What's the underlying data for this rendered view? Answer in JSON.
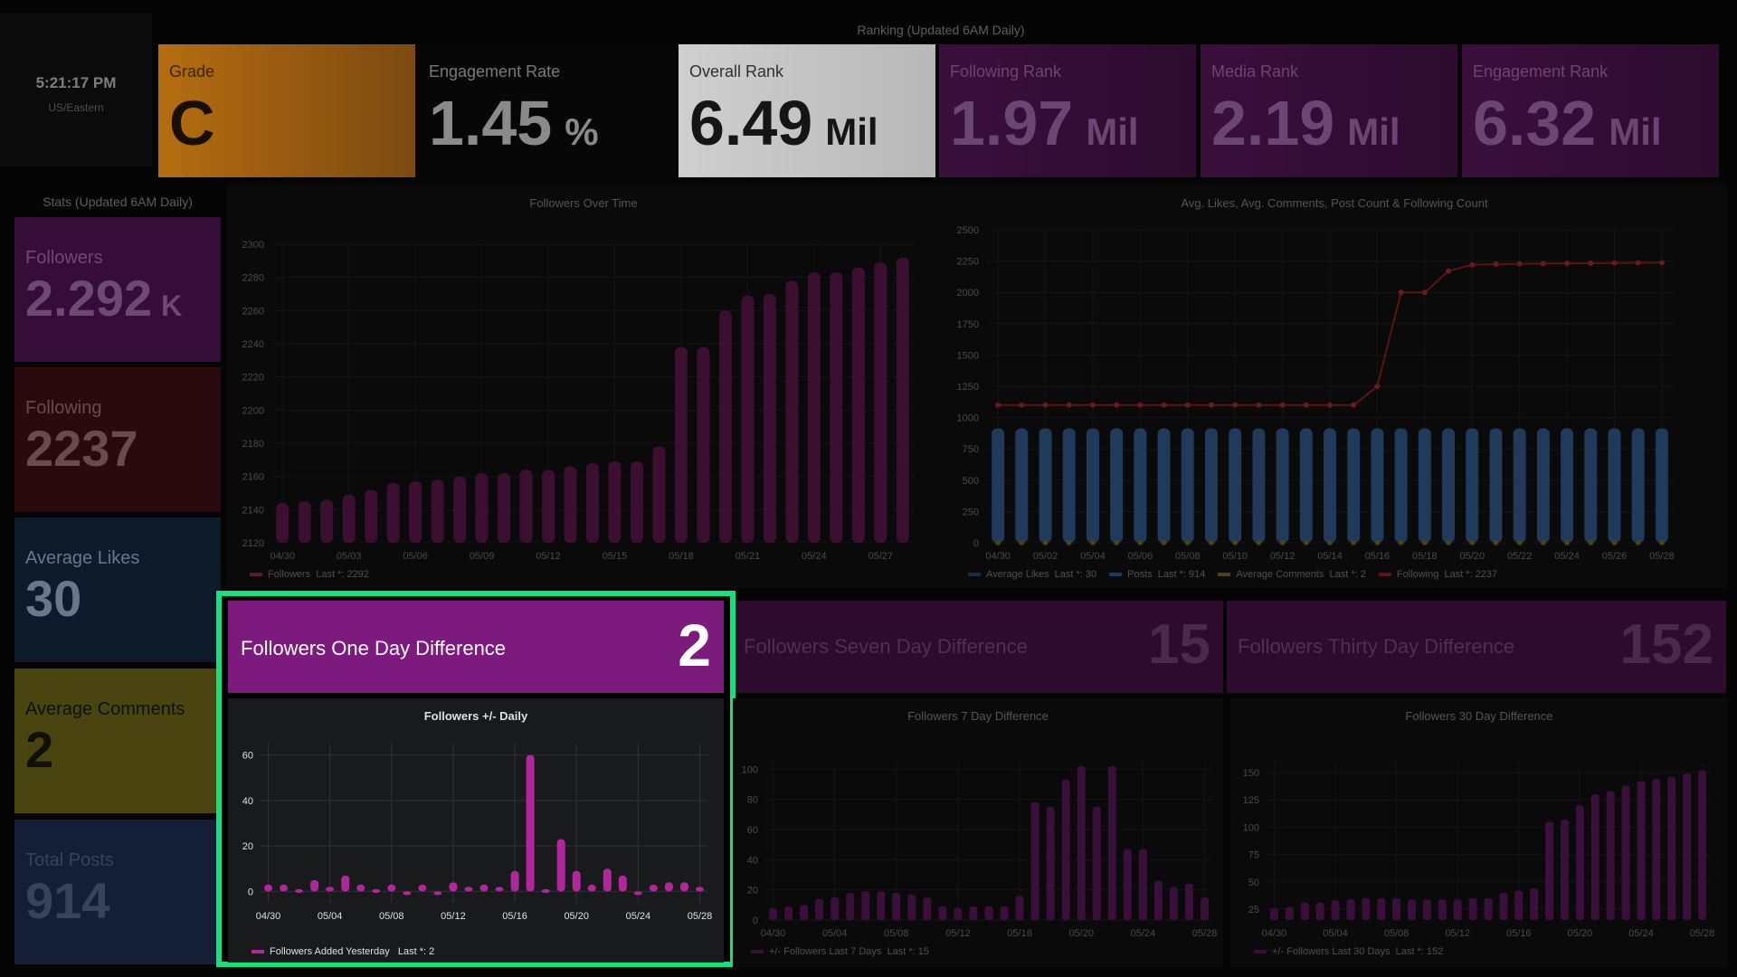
{
  "clock": {
    "time": "5:21:17 PM",
    "zone": "US/Eastern"
  },
  "ranking": {
    "title": "Ranking (Updated 6AM Daily)",
    "cards": [
      {
        "label": "Grade",
        "value": "C",
        "unit": "",
        "bg": "#b56d10",
        "bg2": "#7a4a10",
        "fg": "#1a0e00",
        "lblColor": "#3a2604"
      },
      {
        "label": "Engagement Rate",
        "value": "1.45",
        "unit": "%",
        "bg": "#070707",
        "bg2": "#070707",
        "fg": "#8a8a8a",
        "lblColor": "#7a7a7a"
      },
      {
        "label": "Overall Rank",
        "value": "6.49",
        "unit": "Mil",
        "bg": "#cfcfcf",
        "bg2": "#b8b8b8",
        "fg": "#151515",
        "lblColor": "#303030"
      },
      {
        "label": "Following Rank",
        "value": "1.97",
        "unit": "Mil",
        "bg": "#3a0f3c",
        "bg2": "#2c0b2e",
        "fg": "#6b4670",
        "lblColor": "#6b4670"
      },
      {
        "label": "Media Rank",
        "value": "2.19",
        "unit": "Mil",
        "bg": "#3a0f3c",
        "bg2": "#2c0b2e",
        "fg": "#6b4670",
        "lblColor": "#6b4670"
      },
      {
        "label": "Engagement Rank",
        "value": "6.32",
        "unit": "Mil",
        "bg": "#3a0f3c",
        "bg2": "#2c0b2e",
        "fg": "#6b4670",
        "lblColor": "#6b4670"
      }
    ]
  },
  "stats": {
    "title": "Stats (Updated 6AM Daily)",
    "cards": [
      {
        "label": "Followers",
        "value": "2.292",
        "unit": "K",
        "bg": "#360d38",
        "fg": "#6e4a72"
      },
      {
        "label": "Following",
        "value": "2237",
        "unit": "",
        "bg": "#2a0a0c",
        "fg": "#6a4a4c"
      },
      {
        "label": "Average Likes",
        "value": "30",
        "unit": "",
        "bg": "#0c1a2a",
        "fg": "#6a7788"
      },
      {
        "label": "Average Comments",
        "value": "2",
        "unit": "",
        "bg": "#4a4510",
        "fg": "#111008"
      },
      {
        "label": "Total Posts",
        "value": "914",
        "unit": "",
        "bg": "#141e36",
        "fg": "#384258"
      }
    ]
  },
  "followers_over_time": {
    "title": "Followers Over Time",
    "legend": "Followers",
    "legend_last": "Last *: 2292",
    "x_ticks": [
      "04/30",
      "05/03",
      "05/06",
      "05/09",
      "05/12",
      "05/15",
      "05/18",
      "05/21",
      "05/24",
      "05/27"
    ],
    "y_ticks": [
      "2120",
      "2140",
      "2160",
      "2180",
      "2200",
      "2220",
      "2240",
      "2260",
      "2280",
      "2300"
    ]
  },
  "avg_chart": {
    "title": "Avg. Likes, Avg. Comments, Post Count & Following Count",
    "x_ticks": [
      "04/30",
      "05/02",
      "05/04",
      "05/06",
      "05/08",
      "05/10",
      "05/12",
      "05/14",
      "05/16",
      "05/18",
      "05/20",
      "05/22",
      "05/24",
      "05/26",
      "05/28"
    ],
    "y_ticks": [
      "0",
      "250",
      "500",
      "750",
      "1000",
      "1250",
      "1500",
      "1750",
      "2000",
      "2250",
      "2500"
    ],
    "legend": [
      {
        "name": "Average Likes",
        "last": "Last *: 30",
        "color": "#1a2c48"
      },
      {
        "name": "Posts",
        "last": "Last *: 914",
        "color": "#1f3a5a"
      },
      {
        "name": "Average Comments",
        "last": "Last *: 2",
        "color": "#4a4412"
      },
      {
        "name": "Following",
        "last": "Last *: 2237",
        "color": "#5a1414"
      }
    ]
  },
  "diffs": [
    {
      "label": "Followers One Day Difference",
      "value": "2",
      "bg": "#7d1a7d",
      "fg": "#ffffff",
      "lblColor": "#ffffff"
    },
    {
      "label": "Followers Seven Day Difference",
      "value": "15",
      "bg": "#2c0b2e",
      "fg": "#4a2a4c",
      "lblColor": "#4e3050"
    },
    {
      "label": "Followers Thirty Day Difference",
      "value": "152",
      "bg": "#2c0b2e",
      "fg": "#4a2a4c",
      "lblColor": "#4e3050"
    }
  ],
  "seven_day": {
    "title": "Followers 7 Day Difference",
    "legend": "+/- Followers Last 7 Days",
    "legend_last": "Last *: 15",
    "x_ticks": [
      "04/30",
      "05/04",
      "05/08",
      "05/12",
      "05/16",
      "05/20",
      "05/24",
      "05/28"
    ],
    "y_ticks": [
      "0",
      "20",
      "40",
      "60",
      "80",
      "100"
    ]
  },
  "thirty_day": {
    "title": "Followers 30 Day Difference",
    "legend": "+/- Followers Last 30 Days",
    "legend_last": "Last *: 152",
    "x_ticks": [
      "04/30",
      "05/04",
      "05/08",
      "05/12",
      "05/16",
      "05/20",
      "05/24",
      "05/28"
    ],
    "y_ticks": [
      "25",
      "50",
      "75",
      "100",
      "125",
      "150"
    ]
  },
  "chart_data": [
    {
      "type": "bar",
      "title": "Followers Over Time",
      "categories": [
        "04/30",
        "05/01",
        "05/02",
        "05/03",
        "05/04",
        "05/05",
        "05/06",
        "05/07",
        "05/08",
        "05/09",
        "05/10",
        "05/11",
        "05/12",
        "05/13",
        "05/14",
        "05/15",
        "05/16",
        "05/17",
        "05/18",
        "05/19",
        "05/20",
        "05/21",
        "05/22",
        "05/23",
        "05/24",
        "05/25",
        "05/26",
        "05/27",
        "05/28"
      ],
      "series": [
        {
          "name": "Followers",
          "values": [
            2144,
            2145,
            2146,
            2149,
            2152,
            2156,
            2157,
            2158,
            2160,
            2162,
            2162,
            2164,
            2164,
            2166,
            2168,
            2169,
            2169,
            2178,
            2238,
            2238,
            2260,
            2269,
            2270,
            2278,
            2283,
            2283,
            2286,
            2289,
            2292
          ]
        }
      ],
      "ylim": [
        2120,
        2300
      ]
    },
    {
      "type": "bar",
      "title": "Avg. Likes, Avg. Comments, Post Count & Following Count",
      "categories": [
        "04/30",
        "05/01",
        "05/02",
        "05/03",
        "05/04",
        "05/05",
        "05/06",
        "05/07",
        "05/08",
        "05/09",
        "05/10",
        "05/11",
        "05/12",
        "05/13",
        "05/14",
        "05/15",
        "05/16",
        "05/17",
        "05/18",
        "05/19",
        "05/20",
        "05/21",
        "05/22",
        "05/23",
        "05/24",
        "05/25",
        "05/26",
        "05/27",
        "05/28"
      ],
      "series": [
        {
          "name": "Average Likes",
          "values": [
            30,
            30,
            30,
            30,
            30,
            30,
            30,
            30,
            30,
            30,
            30,
            30,
            30,
            30,
            30,
            30,
            30,
            30,
            30,
            30,
            30,
            30,
            30,
            30,
            30,
            30,
            30,
            30,
            30
          ]
        },
        {
          "name": "Posts",
          "values": [
            914,
            914,
            914,
            914,
            914,
            914,
            914,
            914,
            914,
            914,
            914,
            914,
            914,
            914,
            914,
            914,
            914,
            914,
            914,
            914,
            914,
            914,
            914,
            914,
            914,
            914,
            914,
            914,
            914
          ]
        },
        {
          "name": "Average Comments",
          "values": [
            2,
            2,
            2,
            2,
            2,
            2,
            2,
            2,
            2,
            2,
            2,
            2,
            2,
            2,
            2,
            2,
            2,
            2,
            2,
            2,
            2,
            2,
            2,
            2,
            2,
            2,
            2,
            2,
            2
          ]
        },
        {
          "name": "Following",
          "values": [
            1100,
            1100,
            1100,
            1100,
            1100,
            1100,
            1100,
            1100,
            1100,
            1100,
            1100,
            1100,
            1100,
            1100,
            1100,
            1100,
            1250,
            2000,
            2000,
            2170,
            2220,
            2225,
            2228,
            2230,
            2232,
            2233,
            2235,
            2236,
            2237
          ]
        }
      ],
      "ylim": [
        0,
        2500
      ]
    },
    {
      "type": "bar",
      "title": "Followers +/- Daily",
      "categories": [
        "04/30",
        "05/01",
        "05/02",
        "05/03",
        "05/04",
        "05/05",
        "05/06",
        "05/07",
        "05/08",
        "05/09",
        "05/10",
        "05/11",
        "05/12",
        "05/13",
        "05/14",
        "05/15",
        "05/16",
        "05/17",
        "05/18",
        "05/19",
        "05/20",
        "05/21",
        "05/22",
        "05/23",
        "05/24",
        "05/25",
        "05/26",
        "05/27",
        "05/28"
      ],
      "series": [
        {
          "name": "Followers Added Yesterday",
          "values": [
            3,
            3,
            1,
            5,
            2,
            7,
            3,
            1,
            3,
            0,
            3,
            -1,
            4,
            2,
            3,
            2,
            9,
            60,
            1,
            23,
            9,
            3,
            10,
            7,
            0,
            3,
            4,
            4,
            2
          ]
        }
      ],
      "ylim": [
        -5,
        65
      ]
    },
    {
      "type": "bar",
      "title": "Followers 7 Day Difference",
      "categories": [
        "04/30",
        "05/01",
        "05/02",
        "05/03",
        "05/04",
        "05/05",
        "05/06",
        "05/07",
        "05/08",
        "05/09",
        "05/10",
        "05/11",
        "05/12",
        "05/13",
        "05/14",
        "05/15",
        "05/16",
        "05/17",
        "05/18",
        "05/19",
        "05/20",
        "05/21",
        "05/22",
        "05/23",
        "05/24",
        "05/25",
        "05/26",
        "05/27",
        "05/28"
      ],
      "series": [
        {
          "name": "+/- Followers Last 7 Days",
          "values": [
            8,
            9,
            10,
            14,
            15,
            18,
            19,
            19,
            18,
            17,
            15,
            9,
            8,
            9,
            9,
            9,
            16,
            78,
            75,
            93,
            102,
            75,
            102,
            47,
            47,
            26,
            22,
            24,
            15
          ]
        }
      ],
      "ylim": [
        0,
        105
      ]
    },
    {
      "type": "bar",
      "title": "Followers 30 Day Difference",
      "categories": [
        "04/30",
        "05/01",
        "05/02",
        "05/03",
        "05/04",
        "05/05",
        "05/06",
        "05/07",
        "05/08",
        "05/09",
        "05/10",
        "05/11",
        "05/12",
        "05/13",
        "05/14",
        "05/15",
        "05/16",
        "05/17",
        "05/18",
        "05/19",
        "05/20",
        "05/21",
        "05/22",
        "05/23",
        "05/24",
        "05/25",
        "05/26",
        "05/27",
        "05/28"
      ],
      "series": [
        {
          "name": "+/- Followers Last 30 Days",
          "values": [
            26,
            27,
            31,
            31,
            33,
            34,
            35,
            35,
            35,
            34,
            34,
            34,
            34,
            35,
            35,
            40,
            42,
            44,
            105,
            107,
            120,
            130,
            133,
            138,
            142,
            144,
            146,
            149,
            152
          ]
        }
      ],
      "ylim": [
        15,
        160
      ]
    }
  ]
}
